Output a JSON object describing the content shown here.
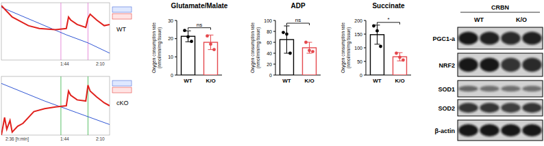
{
  "oxygraph": {
    "panels": [
      {
        "label": "WT",
        "time_labels": [
          "1:44",
          "2:10"
        ],
        "flux": {
          "x": [
            0,
            10,
            25,
            35,
            50,
            60,
            62,
            64,
            70,
            78,
            80,
            82,
            88,
            95,
            100
          ],
          "y": [
            95,
            75,
            60,
            55,
            53,
            55,
            75,
            70,
            62,
            57,
            73,
            80,
            70,
            60,
            62
          ]
        },
        "o2": {
          "x": [
            0,
            30,
            60,
            80,
            100
          ],
          "y": [
            92,
            68,
            44,
            30,
            12
          ]
        }
      },
      {
        "label": "cKO",
        "time_labels": [
          "2:36 [h:min]",
          "1:44",
          "2:10"
        ],
        "flux": {
          "x": [
            0,
            3,
            5,
            8,
            10,
            15,
            20,
            30,
            40,
            50,
            60,
            62,
            64,
            70,
            78,
            80,
            82,
            88,
            95,
            100
          ],
          "y": [
            0,
            30,
            10,
            25,
            5,
            15,
            20,
            40,
            45,
            48,
            50,
            75,
            68,
            60,
            58,
            85,
            75,
            65,
            55,
            50
          ]
        },
        "o2": {
          "x": [
            0,
            40,
            70,
            100
          ],
          "y": [
            88,
            58,
            38,
            18
          ]
        }
      }
    ]
  },
  "chart_data": [
    {
      "type": "bar",
      "title": "Glutamate/Malate",
      "y_label": "Oxygen consumption rate (nmol/min/mg tissue)",
      "categories": [
        "WT",
        "K/O"
      ],
      "values": [
        21.3,
        18
      ],
      "errors": [
        3,
        4
      ],
      "points": [
        [
          24.5,
          21,
          18.5
        ],
        [
          21.5,
          17,
          14
        ]
      ],
      "colors": [
        "#000000",
        "#e5484d"
      ],
      "ylim": [
        0,
        30
      ],
      "yticks": [
        0,
        10,
        20,
        30
      ],
      "annotation": "ns"
    },
    {
      "type": "bar",
      "title": "ADP",
      "y_label": "Oxygen consumption rate (nmol/min/mg tissue)",
      "categories": [
        "WT",
        "K/O"
      ],
      "values": [
        65,
        50
      ],
      "errors": [
        25,
        10
      ],
      "points": [
        [
          78,
          75,
          40
        ],
        [
          60,
          45,
          43
        ]
      ],
      "colors": [
        "#000000",
        "#e5484d"
      ],
      "ylim": [
        0,
        100
      ],
      "yticks": [
        0,
        20,
        40,
        60,
        80,
        100
      ],
      "annotation": "ns"
    },
    {
      "type": "bar",
      "title": "Succinate",
      "y_label": "Oxygen consumption rate (nmol/min/mg tissue)",
      "categories": [
        "WT",
        "K/O"
      ],
      "values": [
        148,
        67
      ],
      "errors": [
        35,
        15
      ],
      "points": [
        [
          180,
          162,
          105
        ],
        [
          80,
          65,
          55
        ]
      ],
      "colors": [
        "#000000",
        "#e5484d"
      ],
      "ylim": [
        0,
        200
      ],
      "yticks": [
        0,
        50,
        100,
        150,
        200
      ],
      "annotation": "*"
    }
  ],
  "blot": {
    "title": "CRBN",
    "groups": [
      "WT",
      "K/O"
    ],
    "rows": [
      "PGC1-a",
      "NRF2",
      "SOD1",
      "SOD2",
      "β-actin"
    ]
  }
}
